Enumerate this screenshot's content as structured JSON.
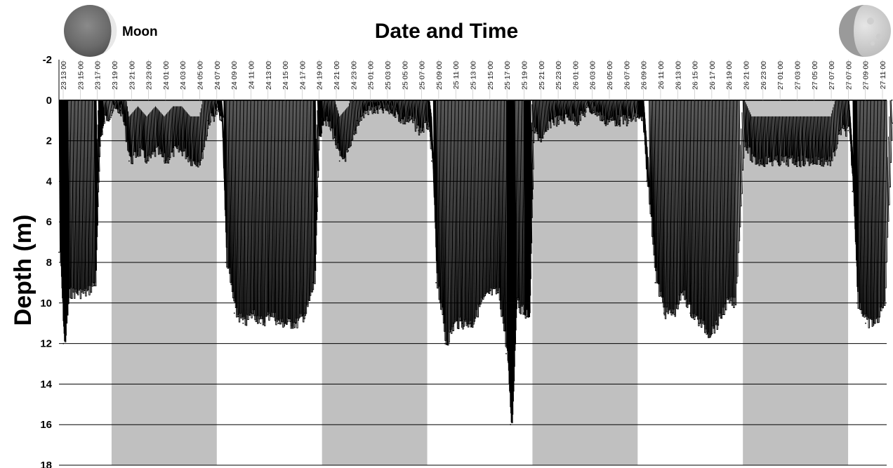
{
  "moon_label": "Moon",
  "colors": {
    "night_band": "#c0c0c0",
    "trace": "#000000",
    "grid": "#000000",
    "background": "#ffffff"
  },
  "icons": {
    "left": "waxing-crescent-moon-icon",
    "right": "waxing-crescent-moon-icon"
  },
  "chart_data": {
    "type": "line",
    "title": "Date and Time",
    "xlabel": "",
    "ylabel": "Depth (m)",
    "ylim": [
      -2,
      18
    ],
    "y_inverted": true,
    "y_ticks": [
      "-2",
      "0",
      "2",
      "4",
      "6",
      "8",
      "10",
      "12",
      "14",
      "16",
      "18"
    ],
    "grid": true,
    "x_ticks": [
      "23 13 00",
      "23 15 00",
      "23 17 00",
      "23 19 00",
      "23 21 00",
      "23 23 00",
      "24 01 00",
      "24 03 00",
      "24 05 00",
      "24 07 00",
      "24 09 00",
      "24 11 00",
      "24 13 00",
      "24 15 00",
      "24 17 00",
      "24 19 00",
      "24 21 00",
      "24 23 00",
      "25 01 00",
      "25 03 00",
      "25 05 00",
      "25 07 00",
      "25 09 00",
      "25 11 00",
      "25 13 00",
      "25 15 00",
      "25 17 00",
      "25 19 00",
      "25 21 00",
      "25 23 00",
      "26 01 00",
      "26 03 00",
      "26 05 00",
      "26 07 00",
      "26 09 00",
      "26 11 00",
      "26 13 00",
      "26 15 00",
      "26 17 00",
      "26 19 00",
      "26 21 00",
      "26 23 00",
      "27 01 00",
      "27 03 00",
      "27 05 00",
      "27 07 00",
      "27 07 00",
      "27 09 00",
      "27 11 00"
    ],
    "night_periods": [
      {
        "start": "23 19 00",
        "end": "24 07 00"
      },
      {
        "start": "24 19 00",
        "end": "25 07 00"
      },
      {
        "start": "25 19 00",
        "end": "26 07 00"
      },
      {
        "start": "26 19 00",
        "end": "27 07 00"
      }
    ],
    "series": [
      {
        "x": [
          "23 13 00",
          "23 13 30",
          "23 14 00",
          "23 15 00",
          "23 16 00",
          "23 17 00",
          "23 17 30",
          "23 18 00",
          "23 19 00",
          "23 20 00",
          "23 21 00",
          "23 22 00",
          "23 23 00",
          "24 00 00",
          "24 01 00",
          "24 02 00",
          "24 03 00",
          "24 04 00",
          "24 05 00",
          "24 06 00",
          "24 07 00",
          "24 07 30",
          "24 08 00",
          "24 09 00",
          "24 10 00",
          "24 11 00",
          "24 12 00",
          "24 13 00",
          "24 14 00",
          "24 15 00",
          "24 16 00",
          "24 17 00",
          "24 18 00",
          "24 18 30",
          "24 19 00",
          "24 20 00",
          "24 21 00",
          "24 22 00",
          "24 23 00",
          "25 00 00",
          "25 01 00",
          "25 02 00",
          "25 03 00",
          "25 04 00",
          "25 05 00",
          "25 06 00",
          "25 07 00",
          "25 07 30",
          "25 08 00",
          "25 09 00",
          "25 10 00",
          "25 11 00",
          "25 12 00",
          "25 13 00",
          "25 14 00",
          "25 15 00",
          "25 16 00",
          "25 16 30",
          "25 17 00",
          "25 18 00",
          "25 18 30",
          "25 19 00",
          "25 20 00",
          "25 21 00",
          "25 22 00",
          "25 23 00",
          "26 00 00",
          "26 01 00",
          "26 02 00",
          "26 03 00",
          "26 04 00",
          "26 05 00",
          "26 06 00",
          "26 07 00",
          "26 07 30",
          "26 08 00",
          "26 09 00",
          "26 10 00",
          "26 11 00",
          "26 12 00",
          "26 13 00",
          "26 14 00",
          "26 15 00",
          "26 16 00",
          "26 17 00",
          "26 18 00",
          "26 19 00",
          "26 20 00",
          "26 21 00",
          "26 22 00",
          "26 23 00",
          "27 00 00",
          "27 01 00",
          "27 02 00",
          "27 03 00",
          "27 04 00",
          "27 05 00",
          "27 06 00",
          "27 07 00",
          "27 07 30",
          "27 08 00",
          "27 09 00",
          "27 10 00",
          "27 11 00",
          "27 12 00"
        ],
        "y": [
          7.5,
          12,
          9.5,
          9.5,
          9.5,
          9,
          2,
          1,
          0.5,
          0.5,
          3,
          2.5,
          3,
          2.5,
          3,
          2.5,
          2.5,
          3,
          3,
          1,
          0.5,
          1,
          8,
          10.5,
          11,
          10.5,
          11,
          10.5,
          11,
          11,
          11,
          10.5,
          9,
          2,
          0.8,
          1.5,
          3,
          2.5,
          1,
          0.5,
          0.5,
          0.5,
          0.5,
          1,
          1,
          1.5,
          1.2,
          3,
          9,
          12,
          11,
          11,
          11,
          10,
          9.5,
          9.5,
          12.5,
          16,
          10,
          10.5,
          10.5,
          1.5,
          2,
          1,
          1,
          0.8,
          1,
          0.5,
          0.5,
          1,
          1,
          1,
          1,
          0.8,
          1,
          4,
          9,
          10.5,
          10.5,
          9.5,
          10.5,
          11,
          11.5,
          11,
          10,
          10,
          2,
          3,
          3,
          3,
          3,
          3,
          3,
          3,
          3,
          3,
          3,
          1.5,
          1.5,
          4.5,
          10,
          11,
          11,
          10,
          0
        ]
      }
    ]
  }
}
